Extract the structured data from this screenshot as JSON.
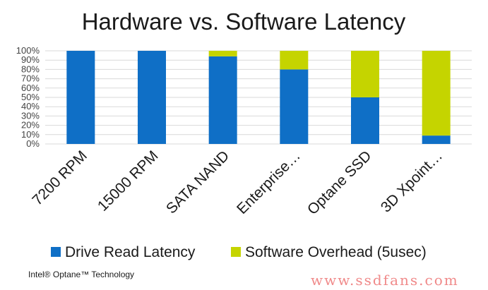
{
  "chart_data": {
    "type": "bar",
    "stacked": true,
    "title": "Hardware vs. Software Latency",
    "categories": [
      "7200 RPM",
      "15000 RPM",
      "SATA NAND",
      "Enterprise…",
      "Optane SSD",
      "3D Xpoint…"
    ],
    "series": [
      {
        "name": "Drive Read Latency",
        "values": [
          100,
          100,
          94,
          80,
          50,
          9
        ],
        "color": "#0f6fc6"
      },
      {
        "name": "Software Overhead (5usec)",
        "values": [
          0,
          0,
          6,
          20,
          50,
          91
        ],
        "color": "#c5d400"
      }
    ],
    "yticks": [
      "0%",
      "10%",
      "20%",
      "30%",
      "40%",
      "50%",
      "60%",
      "70%",
      "80%",
      "90%",
      "100%"
    ],
    "ylim": [
      0,
      100
    ],
    "xlabel": "",
    "ylabel": "",
    "grid": true,
    "legend_position": "bottom"
  },
  "footer": "Intel® Optane™ Technology",
  "watermark": "www.ssdfans.com"
}
